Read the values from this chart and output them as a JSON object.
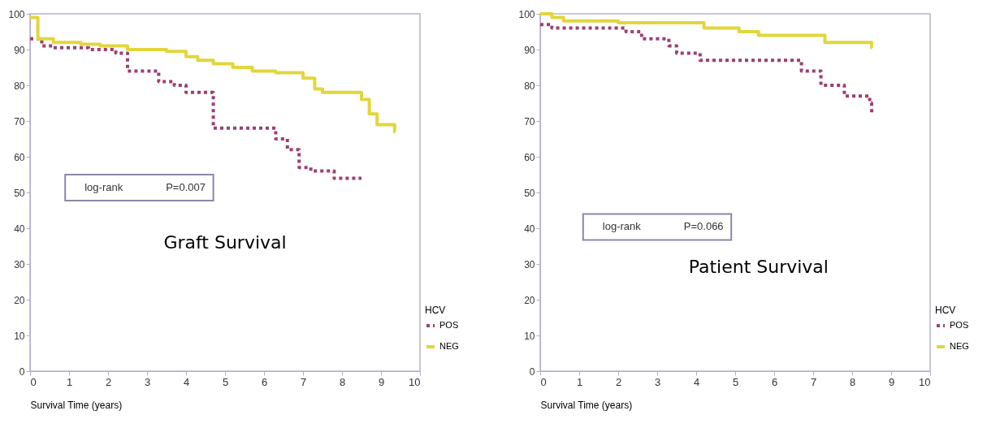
{
  "chart_data": [
    {
      "type": "step",
      "title": "Graft Survival",
      "xlabel": "Survival Time (years)",
      "legend_title": "HCV",
      "legend": "bottom right",
      "annotations": [
        "log-rank",
        "P=0.007"
      ],
      "xlim": [
        0,
        10
      ],
      "xticks": [
        0,
        1,
        2,
        3,
        4,
        5,
        6,
        7,
        8,
        9,
        10
      ],
      "ylim": [
        0,
        100
      ],
      "yticks": [
        0,
        10,
        20,
        30,
        40,
        50,
        60,
        70,
        80,
        90,
        100
      ],
      "grid": false,
      "series": [
        {
          "name": "POS",
          "color": "#9b3f72",
          "line_style": "dotted",
          "x": [
            0,
            0.3,
            0.6,
            1.5,
            2.2,
            2.5,
            3.3,
            3.7,
            4.0,
            4.7,
            6.3,
            6.6,
            6.9,
            7.2,
            7.8,
            8.0,
            8.5
          ],
          "values": [
            93,
            91,
            90.5,
            90,
            89,
            84,
            81,
            80,
            78,
            68,
            65,
            62,
            57,
            56,
            54,
            54,
            54
          ]
        },
        {
          "name": "NEG",
          "color": "#e2d63c",
          "line_style": "solid",
          "x": [
            0,
            0.2,
            0.6,
            1.3,
            1.8,
            2.5,
            3.5,
            4.0,
            4.3,
            4.7,
            5.2,
            5.7,
            6.3,
            7.0,
            7.3,
            7.5,
            8.5,
            8.7,
            8.9,
            9.0,
            9.35,
            9.36
          ],
          "values": [
            99,
            93,
            92,
            91.5,
            91,
            90,
            89.5,
            88,
            87,
            86,
            85,
            84,
            83.5,
            82,
            79,
            78,
            76,
            72,
            69,
            69,
            67,
            67
          ]
        }
      ]
    },
    {
      "type": "step",
      "title": "Patient Survival",
      "xlabel": "Survival Time (years)",
      "legend_title": "HCV",
      "legend": "bottom right",
      "annotations": [
        "log-rank",
        "P=0.066"
      ],
      "xlim": [
        0,
        10
      ],
      "xticks": [
        0,
        1,
        2,
        3,
        4,
        5,
        6,
        7,
        8,
        9,
        10
      ],
      "ylim": [
        0,
        100
      ],
      "yticks": [
        0,
        10,
        20,
        30,
        40,
        50,
        60,
        70,
        80,
        90,
        100
      ],
      "grid": false,
      "series": [
        {
          "name": "POS",
          "color": "#9b3f72",
          "line_style": "dotted",
          "x": [
            0,
            0.3,
            2.2,
            2.6,
            3.3,
            3.5,
            4.1,
            4.6,
            6.7,
            7.2,
            7.8,
            8.45,
            8.5
          ],
          "values": [
            97,
            96,
            95,
            93,
            91,
            89,
            87,
            87,
            84,
            80,
            77,
            75,
            72
          ]
        },
        {
          "name": "NEG",
          "color": "#e2d63c",
          "line_style": "solid",
          "x": [
            0,
            0.3,
            0.6,
            2.0,
            4.2,
            5.1,
            5.6,
            7.3,
            8.5,
            8.51
          ],
          "values": [
            100,
            99,
            98,
            97.5,
            96,
            95,
            94,
            92,
            90.5,
            90.5
          ]
        }
      ]
    }
  ]
}
